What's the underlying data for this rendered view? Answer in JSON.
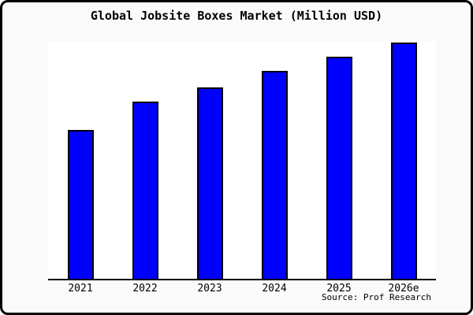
{
  "frame": {
    "background": "#fafafa",
    "plot_background": "#ffffff",
    "border_color": "#000000"
  },
  "chart_data": {
    "type": "bar",
    "title": "Global Jobsite Boxes Market (Million USD)",
    "categories": [
      "2021",
      "2022",
      "2023",
      "2024",
      "2025",
      "2026e"
    ],
    "values": [
      63,
      75,
      81,
      88,
      94,
      100
    ],
    "value_note": "no y-axis scale shown; values are relative bar heights with 2026e = 100",
    "xlabel": "",
    "ylabel": "",
    "ylim": [
      0,
      100.5
    ],
    "grid": false,
    "legend": false,
    "bar_color": "#0000ff",
    "bar_border_color": "#000000",
    "annotations": [
      "Source: Prof Research"
    ]
  }
}
